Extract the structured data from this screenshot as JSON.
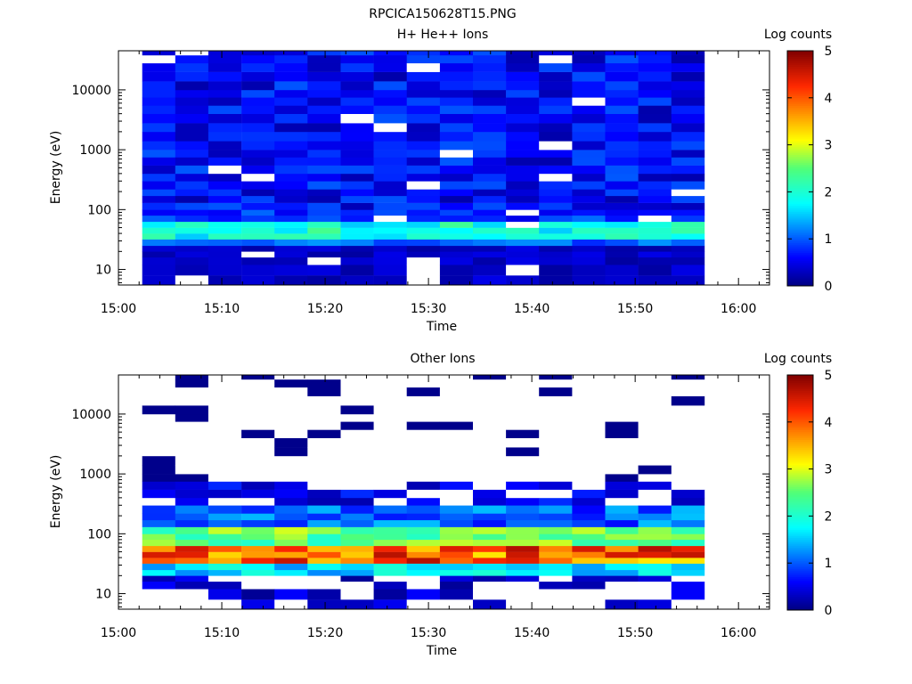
{
  "title": "RPCICA150628T15.PNG",
  "chart_data": [
    {
      "type": "heatmap",
      "title": "H+ He++ Ions",
      "xlabel": "Time",
      "ylabel": "Energy (eV)",
      "colorbar_label": "Log counts",
      "colorbar_ticks": [
        "0",
        "1",
        "2",
        "3",
        "4",
        "5"
      ],
      "colorbar_range": [
        0,
        5
      ],
      "x_ticks": [
        "15:00",
        "15:10",
        "15:20",
        "15:30",
        "15:40",
        "15:50",
        "16:00"
      ],
      "x_range_minutes": [
        0,
        63
      ],
      "y_scale": "log",
      "y_ticks": [
        "10",
        "100",
        "1000",
        "10000"
      ],
      "y_range": [
        5.5,
        45000
      ],
      "time_bins_minutes": [
        2.3,
        5.5,
        8.7,
        11.9,
        15.1,
        18.3,
        21.5,
        24.7,
        27.9,
        31.1,
        34.3,
        37.5,
        40.7,
        43.9,
        47.1,
        50.3,
        53.5,
        56.7
      ],
      "energy_bins_eV": [
        5.5,
        8,
        12,
        16,
        20,
        25,
        32,
        40,
        50,
        63,
        80,
        100,
        130,
        170,
        220,
        300,
        400,
        550,
        750,
        1000,
        1400,
        2000,
        2800,
        4000,
        5500,
        7500,
        10000,
        14000,
        20000,
        28000,
        38000,
        45000
      ],
      "zero_value_color": "#ffffff",
      "colormap": "rainbow (dark blue to dark red)"
    },
    {
      "type": "heatmap",
      "title": "Other Ions",
      "xlabel": "Time",
      "ylabel": "Energy (eV)",
      "colorbar_label": "Log counts",
      "colorbar_ticks": [
        "0",
        "1",
        "2",
        "3",
        "4",
        "5"
      ],
      "colorbar_range": [
        0,
        5
      ],
      "x_ticks": [
        "15:00",
        "15:10",
        "15:20",
        "15:30",
        "15:40",
        "15:50",
        "16:00"
      ],
      "x_range_minutes": [
        0,
        63
      ],
      "y_scale": "log",
      "y_ticks": [
        "10",
        "100",
        "1000",
        "10000"
      ],
      "y_range": [
        5.5,
        45000
      ],
      "time_bins_minutes": [
        2.3,
        5.5,
        8.7,
        11.9,
        15.1,
        18.3,
        21.5,
        24.7,
        27.9,
        31.1,
        34.3,
        37.5,
        40.7,
        43.9,
        47.1,
        50.3,
        53.5,
        56.7
      ],
      "energy_bins_eV": [
        5.5,
        8,
        12,
        16,
        20,
        25,
        32,
        40,
        50,
        63,
        80,
        100,
        130,
        170,
        220,
        300,
        400,
        550,
        750,
        1000,
        1400,
        2000,
        2800,
        4000,
        5500,
        7500,
        10000,
        14000,
        20000,
        28000,
        38000,
        45000
      ],
      "zero_value_color": "#ffffff",
      "colormap": "rainbow (dark blue to dark red)"
    }
  ]
}
